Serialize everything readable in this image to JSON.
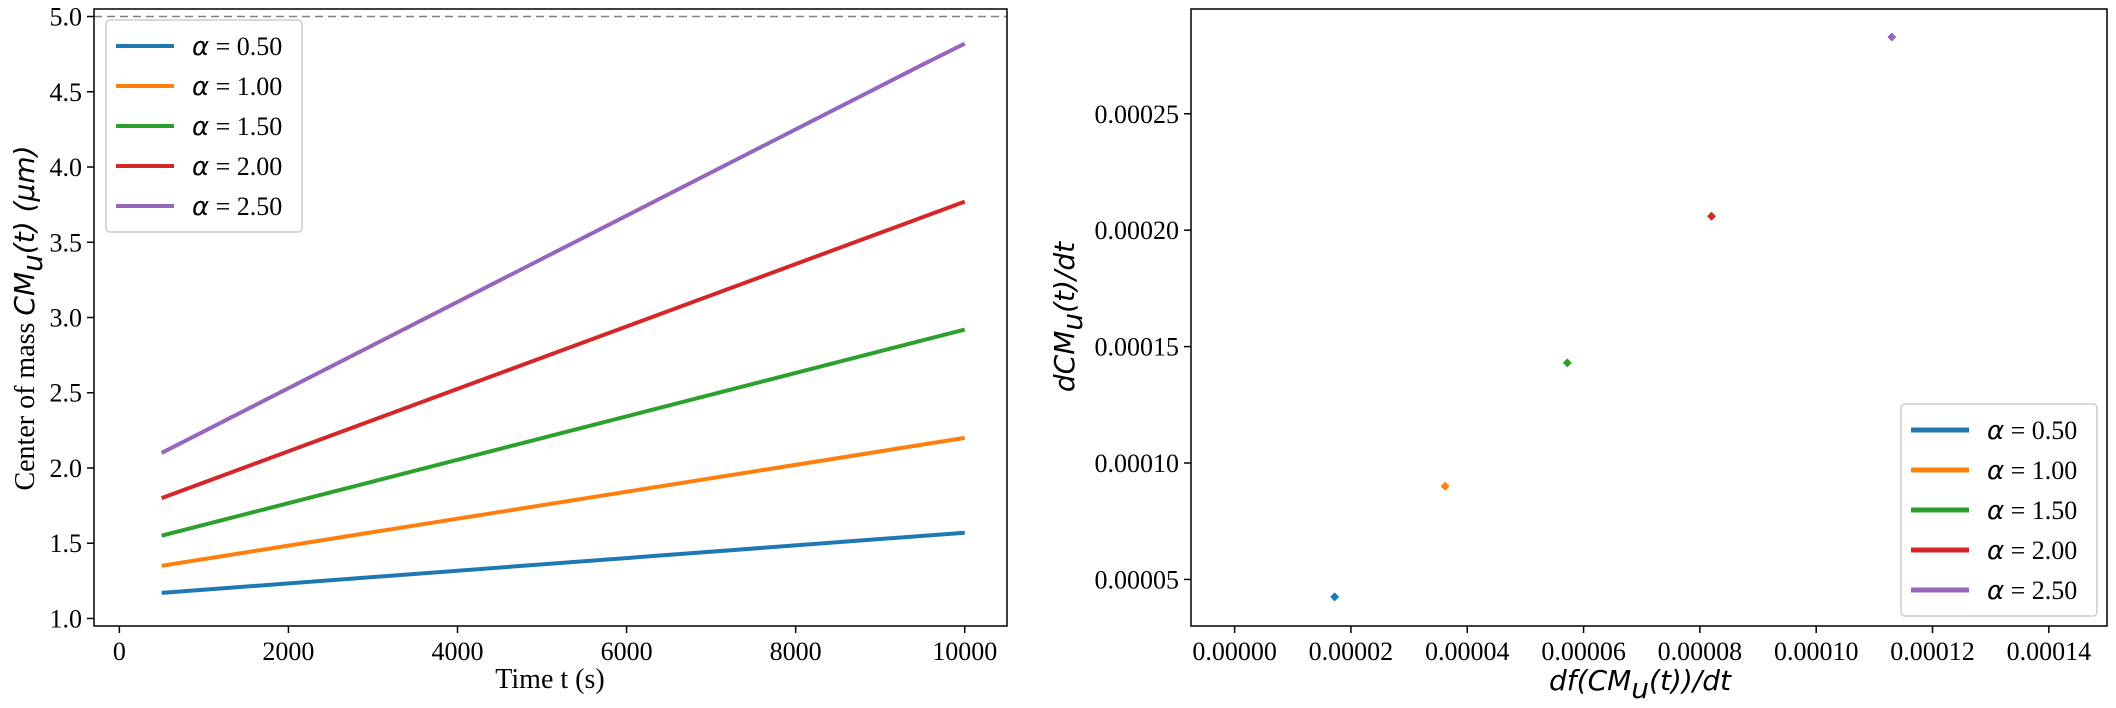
{
  "chart_data": [
    {
      "type": "line",
      "xlabel": "Time t (s)",
      "ylabel_prefix": "Center of mass ",
      "ylabel_math": "CM",
      "ylabel_sub": "u",
      "ylabel_suffix": "(t) (μm)",
      "xlim": [
        -300,
        10500
      ],
      "ylim": [
        0.95,
        5.05
      ],
      "xticks": [
        0,
        2000,
        4000,
        6000,
        8000,
        10000
      ],
      "yticks": [
        1.0,
        1.5,
        2.0,
        2.5,
        3.0,
        3.5,
        4.0,
        4.5,
        5.0
      ],
      "ytick_labels": [
        "1.0",
        "1.5",
        "2.0",
        "2.5",
        "3.0",
        "3.5",
        "4.0",
        "4.5",
        "5.0"
      ],
      "reference_line": {
        "y": 5.0,
        "style": "dashed",
        "color": "#808080"
      },
      "legend_position": "upper-left",
      "series": [
        {
          "name": "α = 0.50",
          "greek": "α",
          "label": " = 0.50",
          "color": "#1f77b4",
          "x": [
            500,
            10000
          ],
          "y": [
            1.17,
            1.57
          ]
        },
        {
          "name": "α = 1.00",
          "greek": "α",
          "label": " = 1.00",
          "color": "#ff7f0e",
          "x": [
            500,
            10000
          ],
          "y": [
            1.35,
            2.2
          ]
        },
        {
          "name": "α = 1.50",
          "greek": "α",
          "label": " = 1.50",
          "color": "#2ca02c",
          "x": [
            500,
            10000
          ],
          "y": [
            1.55,
            2.92
          ]
        },
        {
          "name": "α = 2.00",
          "greek": "α",
          "label": " = 2.00",
          "color": "#d62728",
          "x": [
            500,
            10000
          ],
          "y": [
            1.8,
            3.77
          ]
        },
        {
          "name": "α = 2.50",
          "greek": "α",
          "label": " = 2.50",
          "color": "#9467bd",
          "x": [
            500,
            9500,
            10000
          ],
          "y": [
            2.1,
            4.68,
            4.82
          ]
        }
      ]
    },
    {
      "type": "scatter",
      "xlabel_math": "df(CM",
      "xlabel_sub": "u",
      "xlabel_suffix": "(t))/dt",
      "ylabel_math": "dCM",
      "ylabel_sub": "u",
      "ylabel_suffix": "(t)/dt",
      "xlim": [
        -7.5e-06,
        0.00015
      ],
      "ylim": [
        3e-05,
        0.000295
      ],
      "xticks": [
        0.0,
        2e-05,
        4e-05,
        6e-05,
        8e-05,
        0.0001,
        0.00012,
        0.00014
      ],
      "xtick_labels": [
        "0.00000",
        "0.00002",
        "0.00004",
        "0.00006",
        "0.00008",
        "0.00010",
        "0.00012",
        "0.00014"
      ],
      "yticks": [
        5e-05,
        0.0001,
        0.00015,
        0.0002,
        0.00025
      ],
      "ytick_labels": [
        "0.00005",
        "0.00010",
        "0.00015",
        "0.00020",
        "0.00025"
      ],
      "legend_position": "lower-right",
      "series": [
        {
          "name": "α = 0.50",
          "greek": "α",
          "label": " = 0.50",
          "color": "#1f77b4",
          "x": 1.72e-05,
          "y": 4.25e-05
        },
        {
          "name": "α = 1.00",
          "greek": "α",
          "label": " = 1.00",
          "color": "#ff7f0e",
          "x": 3.62e-05,
          "y": 9e-05
        },
        {
          "name": "α = 1.50",
          "greek": "α",
          "label": " = 1.50",
          "color": "#2ca02c",
          "x": 5.72e-05,
          "y": 0.000143
        },
        {
          "name": "α = 2.00",
          "greek": "α",
          "label": " = 2.00",
          "color": "#d62728",
          "x": 8.2e-05,
          "y": 0.000206
        },
        {
          "name": "α = 2.50",
          "greek": "α",
          "label": " = 2.50",
          "color": "#9467bd",
          "x": 0.000113,
          "y": 0.000283
        }
      ]
    }
  ]
}
